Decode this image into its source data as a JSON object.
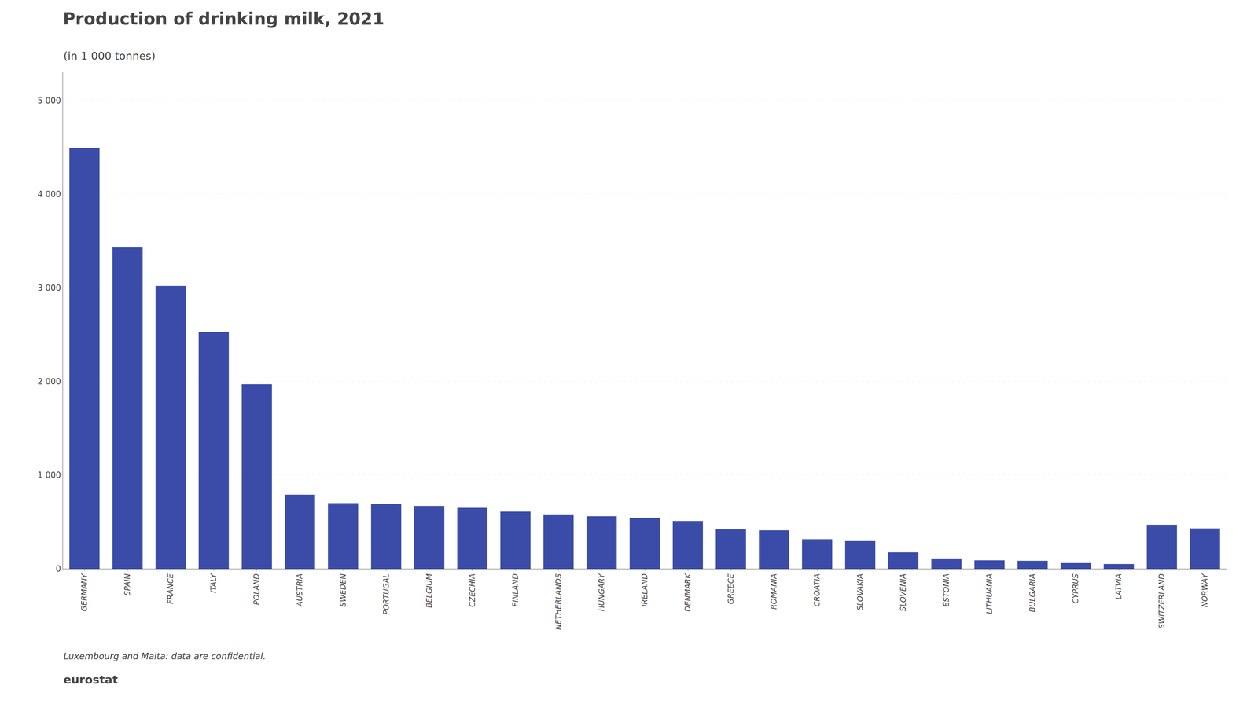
{
  "chart_data": {
    "type": "bar",
    "title": "Production of drinking milk, 2021",
    "subtitle": "(in 1 000 tonnes)",
    "footnote": "Luxembourg and Malta: data are confidential.",
    "annotations": [
      "eurostat"
    ],
    "categories": [
      "GERMANY",
      "SPAIN",
      "FRANCE",
      "ITALY",
      "POLAND",
      "AUSTRIA",
      "SWEDEN",
      "PORTUGAL",
      "BELGIUM",
      "CZECHIA",
      "FINLAND",
      "NETHERLANDS",
      "HUNGARY",
      "IRELAND",
      "DENMARK",
      "GREECE",
      "ROMANIA",
      "CROATIA",
      "SLOVAKIA",
      "SLOVENIA",
      "ESTONIA",
      "LITHUANIA",
      "BULGARIA",
      "CYPRUS",
      "LATVIA",
      "SWITZERLAND",
      "NORWAY"
    ],
    "values": [
      4490,
      3430,
      3020,
      2530,
      1970,
      790,
      700,
      690,
      670,
      650,
      610,
      580,
      560,
      540,
      510,
      420,
      410,
      315,
      295,
      175,
      110,
      90,
      85,
      60,
      50,
      470,
      430
    ],
    "color": "#3a4ca8",
    "ylim": [
      0,
      5300
    ],
    "yticks": [
      0,
      {
        "value": 1000,
        "label": "1 000"
      },
      {
        "value": 2000,
        "label": "2 000"
      },
      {
        "value": 3000,
        "label": "3 000"
      },
      {
        "value": 4000,
        "label": "4 000"
      },
      {
        "value": 5000,
        "label": "5 000"
      }
    ],
    "grid": true
  }
}
